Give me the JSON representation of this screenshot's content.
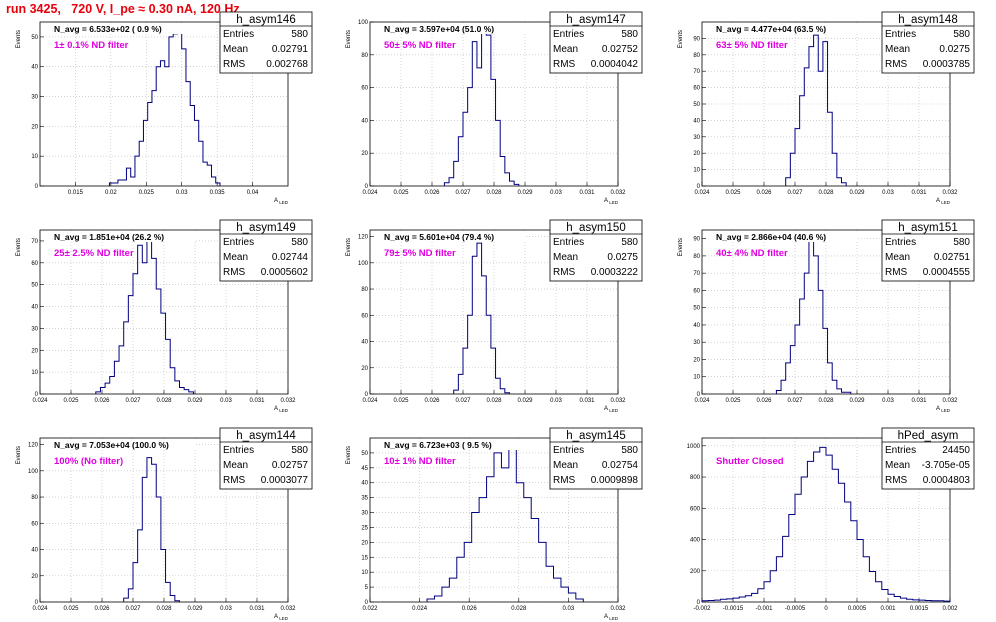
{
  "run_title": "run 3425,   720 V, I_pe ≈ 0.30 nA, 120 Hz",
  "colors": {
    "run_title": "#e8000b",
    "filter_label": "#e000e0",
    "histogram_line": "#000080",
    "grid": "#b8b8b8"
  },
  "chart_data": [
    {
      "type": "histogram",
      "name": "h_asym146",
      "n_avg": "N_avg = 6.533e+02 ( 0.9 %)",
      "filter": "1± 0.1% ND filter",
      "ylabel": "Events",
      "xlabel": "A_{LED}",
      "xlim": [
        0.01,
        0.045
      ],
      "xticks": [
        "0.015",
        "0.02",
        "0.025",
        "0.03",
        "0.035",
        "0.04"
      ],
      "xtick_values": [
        0.015,
        0.02,
        0.025,
        0.03,
        0.035,
        0.04
      ],
      "ylim": [
        0,
        55
      ],
      "yticks": [
        0,
        10,
        20,
        30,
        40,
        50
      ],
      "stats": {
        "Entries": "580",
        "Mean": "0.02791",
        "RMS": "0.002768"
      },
      "x": [
        0.0198,
        0.0204,
        0.021,
        0.0216,
        0.0222,
        0.0228,
        0.0234,
        0.024,
        0.0246,
        0.0252,
        0.0258,
        0.0264,
        0.027,
        0.0276,
        0.0282,
        0.0288,
        0.0294,
        0.03,
        0.0306,
        0.0312,
        0.0318,
        0.0324,
        0.033,
        0.0336,
        0.0342,
        0.0348
      ],
      "values": [
        1,
        1,
        2,
        2,
        6,
        3,
        10,
        15,
        22,
        28,
        32,
        40,
        42,
        40,
        50,
        51,
        52,
        46,
        35,
        27,
        22,
        15,
        8,
        7,
        3,
        1
      ]
    },
    {
      "type": "histogram",
      "name": "h_asym147",
      "n_avg": "N_avg = 3.597e+04 (51.0 %)",
      "filter": "50± 5% ND filter",
      "ylabel": "Events",
      "xlabel": "A_{LED}",
      "xlim": [
        0.024,
        0.032
      ],
      "xticks": [
        "0.024",
        "0.025",
        "0.026",
        "0.027",
        "0.028",
        "0.029",
        "0.03",
        "0.031",
        "0.032"
      ],
      "xtick_values": [
        0.024,
        0.025,
        0.026,
        0.027,
        0.028,
        0.029,
        0.03,
        0.031,
        0.032
      ],
      "ylim": [
        0,
        100
      ],
      "yticks": [
        0,
        20,
        40,
        60,
        80,
        100
      ],
      "stats": {
        "Entries": "580",
        "Mean": "0.02752",
        "RMS": "0.0004042"
      },
      "x": [
        0.0264,
        0.02655,
        0.0267,
        0.02685,
        0.027,
        0.02715,
        0.0273,
        0.02745,
        0.0276,
        0.02775,
        0.0279,
        0.02805,
        0.0282,
        0.02835,
        0.0285,
        0.02865
      ],
      "values": [
        2,
        5,
        15,
        30,
        45,
        60,
        88,
        72,
        95,
        92,
        65,
        40,
        18,
        8,
        3,
        1
      ]
    },
    {
      "type": "histogram",
      "name": "h_asym148",
      "n_avg": "N_avg = 4.477e+04 (63.5 %)",
      "filter": "63± 5% ND filter",
      "ylabel": "Events",
      "xlabel": "A_{LED}",
      "xlim": [
        0.024,
        0.032
      ],
      "xticks": [
        "0.024",
        "0.025",
        "0.026",
        "0.027",
        "0.028",
        "0.029",
        "0.03",
        "0.031",
        "0.032"
      ],
      "xtick_values": [
        0.024,
        0.025,
        0.026,
        0.027,
        0.028,
        0.029,
        0.03,
        0.031,
        0.032
      ],
      "ylim": [
        0,
        100
      ],
      "yticks": [
        0,
        10,
        20,
        30,
        40,
        50,
        60,
        70,
        80,
        90
      ],
      "stats": {
        "Entries": "580",
        "Mean": "0.0275",
        "RMS": "0.0003785"
      },
      "x": [
        0.0267,
        0.02685,
        0.027,
        0.02715,
        0.0273,
        0.02745,
        0.0276,
        0.02775,
        0.0279,
        0.02805,
        0.0282,
        0.02835,
        0.0285
      ],
      "values": [
        5,
        20,
        35,
        55,
        72,
        85,
        92,
        70,
        88,
        45,
        20,
        5,
        2
      ]
    },
    {
      "type": "histogram",
      "name": "h_asym149",
      "n_avg": "N_avg = 1.851e+04 (26.2 %)",
      "filter": "25± 2.5% ND filter",
      "ylabel": "Events",
      "xlabel": "A_{LED}",
      "xlim": [
        0.024,
        0.032
      ],
      "xticks": [
        "0.024",
        "0.025",
        "0.026",
        "0.027",
        "0.028",
        "0.029",
        "0.03",
        "0.031",
        "0.032"
      ],
      "xtick_values": [
        0.024,
        0.025,
        0.026,
        0.027,
        0.028,
        0.029,
        0.03,
        0.031,
        0.032
      ],
      "ylim": [
        0,
        75
      ],
      "yticks": [
        0,
        10,
        20,
        30,
        40,
        50,
        60,
        70
      ],
      "stats": {
        "Entries": "580",
        "Mean": "0.02744",
        "RMS": "0.0005602"
      },
      "x": [
        0.0258,
        0.02595,
        0.0261,
        0.02625,
        0.0264,
        0.02655,
        0.0267,
        0.02685,
        0.027,
        0.02715,
        0.0273,
        0.02745,
        0.0276,
        0.02775,
        0.0279,
        0.02805,
        0.0282,
        0.02835,
        0.0285,
        0.02865,
        0.0288
      ],
      "values": [
        1,
        3,
        5,
        8,
        15,
        22,
        33,
        45,
        55,
        68,
        60,
        72,
        62,
        48,
        37,
        25,
        12,
        6,
        3,
        2,
        1
      ]
    },
    {
      "type": "histogram",
      "name": "h_asym150",
      "n_avg": "N_avg = 5.601e+04 (79.4 %)",
      "filter": "79± 5% ND filter",
      "ylabel": "Events",
      "xlabel": "A_{LED}",
      "xlim": [
        0.024,
        0.032
      ],
      "xticks": [
        "0.024",
        "0.025",
        "0.026",
        "0.027",
        "0.028",
        "0.029",
        "0.03",
        "0.031",
        "0.032"
      ],
      "xtick_values": [
        0.024,
        0.025,
        0.026,
        0.027,
        0.028,
        0.029,
        0.03,
        0.031,
        0.032
      ],
      "ylim": [
        0,
        125
      ],
      "yticks": [
        0,
        20,
        40,
        60,
        80,
        100,
        120
      ],
      "stats": {
        "Entries": "580",
        "Mean": "0.0275",
        "RMS": "0.0003222"
      },
      "x": [
        0.0267,
        0.02685,
        0.027,
        0.02715,
        0.0273,
        0.02745,
        0.0276,
        0.02775,
        0.0279,
        0.02805,
        0.0282,
        0.02835
      ],
      "values": [
        3,
        15,
        35,
        60,
        105,
        115,
        90,
        60,
        35,
        12,
        4,
        1
      ]
    },
    {
      "type": "histogram",
      "name": "h_asym151",
      "n_avg": "N_avg = 2.866e+04 (40.6 %)",
      "filter": "40± 4% ND filter",
      "ylabel": "Events",
      "xlabel": "A_{LED}",
      "xlim": [
        0.024,
        0.032
      ],
      "xticks": [
        "0.024",
        "0.025",
        "0.026",
        "0.027",
        "0.028",
        "0.029",
        "0.03",
        "0.031",
        "0.032"
      ],
      "xtick_values": [
        0.024,
        0.025,
        0.026,
        0.027,
        0.028,
        0.029,
        0.03,
        0.031,
        0.032
      ],
      "ylim": [
        0,
        95
      ],
      "yticks": [
        0,
        10,
        20,
        30,
        40,
        50,
        60,
        70,
        80,
        90
      ],
      "stats": {
        "Entries": "580",
        "Mean": "0.02751",
        "RMS": "0.0004555"
      },
      "x": [
        0.0264,
        0.02655,
        0.0267,
        0.02685,
        0.027,
        0.02715,
        0.0273,
        0.02745,
        0.0276,
        0.02775,
        0.0279,
        0.02805,
        0.0282,
        0.02835,
        0.0285,
        0.02865
      ],
      "values": [
        2,
        8,
        18,
        28,
        40,
        55,
        70,
        90,
        80,
        60,
        38,
        18,
        8,
        3,
        1,
        1
      ]
    },
    {
      "type": "histogram",
      "name": "h_asym144",
      "n_avg": "N_avg = 7.053e+04 (100.0 %)",
      "filter": "100% (No filter)",
      "ylabel": "Events",
      "xlabel": "A_{LED}",
      "xlim": [
        0.024,
        0.032
      ],
      "xticks": [
        "0.024",
        "0.025",
        "0.026",
        "0.027",
        "0.028",
        "0.029",
        "0.03",
        "0.031",
        "0.032"
      ],
      "xtick_values": [
        0.024,
        0.025,
        0.026,
        0.027,
        0.028,
        0.029,
        0.03,
        0.031,
        0.032
      ],
      "ylim": [
        0,
        125
      ],
      "yticks": [
        0,
        20,
        40,
        60,
        80,
        100,
        120
      ],
      "stats": {
        "Entries": "580",
        "Mean": "0.02757",
        "RMS": "0.0003077"
      },
      "x": [
        0.0267,
        0.02685,
        0.027,
        0.02715,
        0.0273,
        0.02745,
        0.0276,
        0.02775,
        0.0279,
        0.02805,
        0.0282,
        0.02835
      ],
      "values": [
        3,
        10,
        30,
        55,
        95,
        110,
        105,
        80,
        40,
        15,
        5,
        1
      ]
    },
    {
      "type": "histogram",
      "name": "h_asym145",
      "n_avg": "N_avg = 6.723e+03 ( 9.5 %)",
      "filter": "10± 1% ND filter",
      "ylabel": "Events",
      "xlabel": "A_{LED}",
      "xlim": [
        0.022,
        0.032
      ],
      "xticks": [
        "0.022",
        "0.024",
        "0.026",
        "0.028",
        "0.03",
        "0.032"
      ],
      "xtick_values": [
        0.022,
        0.024,
        0.026,
        0.028,
        0.03,
        0.032
      ],
      "ylim": [
        0,
        55
      ],
      "yticks": [
        0,
        5,
        10,
        15,
        20,
        25,
        30,
        35,
        40,
        45,
        50
      ],
      "stats": {
        "Entries": "580",
        "Mean": "0.02754",
        "RMS": "0.0009898"
      },
      "x": [
        0.0243,
        0.0246,
        0.0249,
        0.0252,
        0.0255,
        0.0258,
        0.0261,
        0.0264,
        0.0267,
        0.027,
        0.0273,
        0.0276,
        0.0279,
        0.0282,
        0.0285,
        0.0288,
        0.0291,
        0.0294,
        0.0297,
        0.03,
        0.0303
      ],
      "values": [
        1,
        2,
        5,
        8,
        15,
        20,
        30,
        35,
        42,
        50,
        45,
        52,
        40,
        35,
        28,
        20,
        12,
        8,
        5,
        3,
        1
      ]
    },
    {
      "type": "histogram",
      "name": "hPed_asym",
      "n_avg": "",
      "filter": "Shutter Closed",
      "ylabel": "",
      "xlabel": "",
      "xlim": [
        -0.002,
        0.002
      ],
      "xticks": [
        "-0.002",
        "-0.0015",
        "-0.001",
        "-0.0005",
        "0",
        "0.0005",
        "0.001",
        "0.0015",
        "0.002"
      ],
      "xtick_values": [
        -0.002,
        -0.0015,
        -0.001,
        -0.0005,
        0,
        0.0005,
        0.001,
        0.0015,
        0.002
      ],
      "ylim": [
        0,
        1050
      ],
      "yticks": [
        0,
        200,
        400,
        600,
        800,
        1000
      ],
      "stats": {
        "Entries": "24450",
        "Mean": "-3.705e-05",
        "RMS": "0.0004803"
      },
      "x": [
        -0.002,
        -0.0019,
        -0.0018,
        -0.0017,
        -0.0016,
        -0.0015,
        -0.0014,
        -0.0013,
        -0.0012,
        -0.0011,
        -0.001,
        -0.0009,
        -0.0008,
        -0.0007,
        -0.0006,
        -0.0005,
        -0.0004,
        -0.0003,
        -0.0002,
        -0.0001,
        0,
        0.0001,
        0.0002,
        0.0003,
        0.0004,
        0.0005,
        0.0006,
        0.0007,
        0.0008,
        0.0009,
        0.001,
        0.0011,
        0.0012,
        0.0013,
        0.0014,
        0.0015,
        0.0016,
        0.0017,
        0.0018,
        0.0019
      ],
      "values": [
        8,
        10,
        12,
        18,
        20,
        25,
        32,
        40,
        55,
        85,
        130,
        200,
        290,
        420,
        560,
        690,
        800,
        900,
        960,
        990,
        940,
        850,
        760,
        640,
        520,
        400,
        290,
        195,
        130,
        80,
        50,
        35,
        25,
        18,
        14,
        12,
        10,
        8,
        8,
        6
      ]
    }
  ]
}
